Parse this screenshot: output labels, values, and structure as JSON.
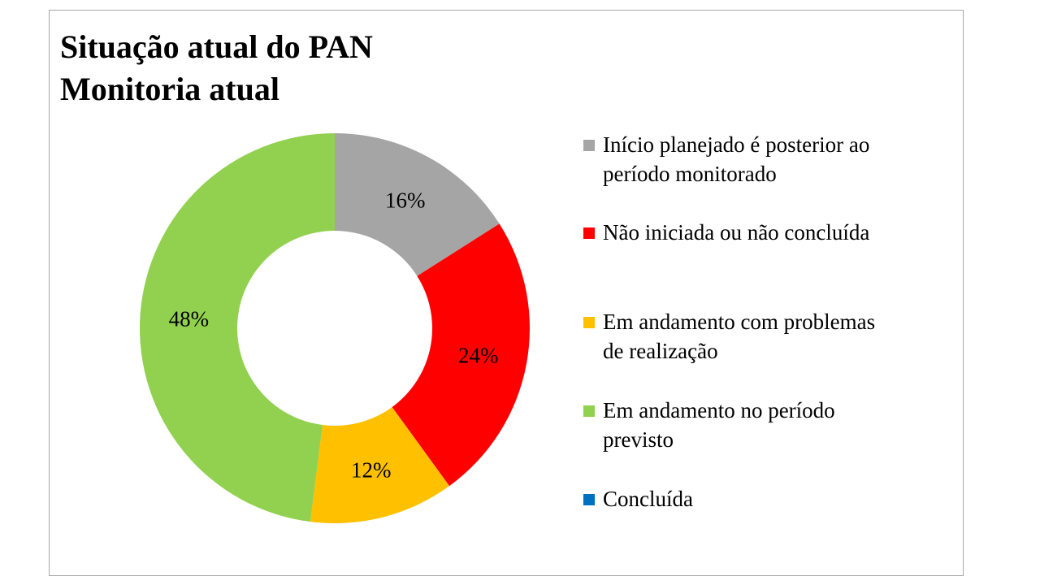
{
  "chart_data": {
    "type": "pie",
    "title": "Situação atual do PAN\nMonitoria atual",
    "donut": true,
    "legend_position": "right",
    "slices": [
      {
        "label": "Início planejado é posterior ao\nperíodo monitorado",
        "value": 16,
        "display": "16%",
        "color": "#a5a5a5"
      },
      {
        "label": "Não iniciada ou não concluída",
        "value": 24,
        "display": "24%",
        "color": "#ff0000"
      },
      {
        "label": "Em andamento com problemas\nde realização",
        "value": 12,
        "display": "12%",
        "color": "#ffc000"
      },
      {
        "label": "Em andamento no período\nprevisto",
        "value": 48,
        "display": "48%",
        "color": "#92d050"
      },
      {
        "label": "Concluída",
        "value": 0,
        "display": "",
        "color": "#0070c0"
      }
    ]
  }
}
